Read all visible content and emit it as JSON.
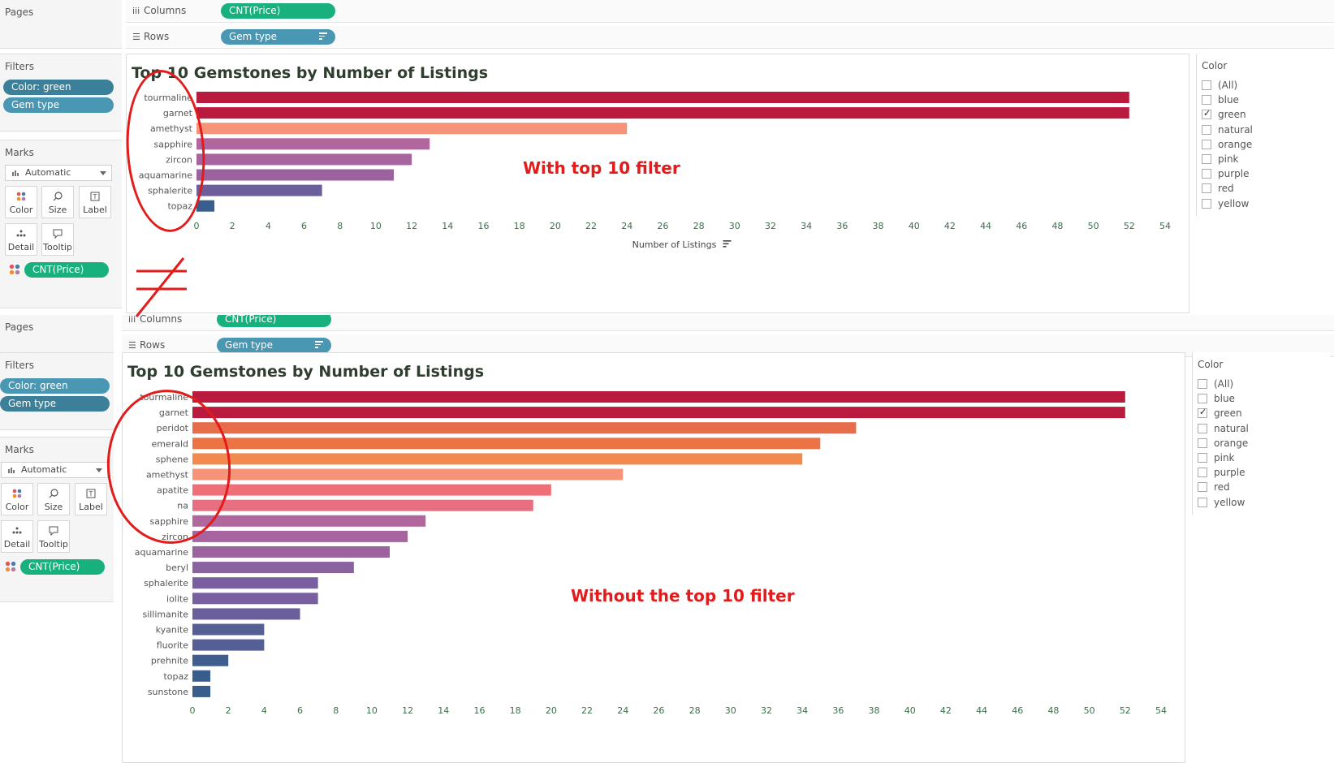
{
  "shelves": {
    "pages_label": "Pages",
    "columns_label": "Columns",
    "rows_label": "Rows",
    "columns_pill": "CNT(Price)",
    "rows_pill": "Gem type"
  },
  "filters": {
    "title": "Filters",
    "items": [
      "Color: green",
      "Gem type"
    ]
  },
  "marks": {
    "title": "Marks",
    "type": "Automatic",
    "buttons": [
      "Color",
      "Size",
      "Label",
      "Detail",
      "Tooltip"
    ],
    "color_field": "CNT(Price)"
  },
  "color_filter": {
    "title": "Color",
    "options": [
      {
        "label": "(All)",
        "checked": false
      },
      {
        "label": "blue",
        "checked": false
      },
      {
        "label": "green",
        "checked": true
      },
      {
        "label": "natural",
        "checked": false
      },
      {
        "label": "orange",
        "checked": false
      },
      {
        "label": "pink",
        "checked": false
      },
      {
        "label": "purple",
        "checked": false
      },
      {
        "label": "red",
        "checked": false
      },
      {
        "label": "yellow",
        "checked": false
      }
    ]
  },
  "annotations": {
    "top": "With top 10 filter",
    "bottom": "Without the top 10 filter"
  },
  "chart_data": [
    {
      "type": "bar",
      "orientation": "horizontal",
      "title": "Top 10 Gemstones by Number of Listings",
      "xlabel": "Number of Listings",
      "xlim": [
        0,
        54
      ],
      "xticks": [
        0,
        2,
        4,
        6,
        8,
        10,
        12,
        14,
        16,
        18,
        20,
        22,
        24,
        26,
        28,
        30,
        32,
        34,
        36,
        38,
        40,
        42,
        44,
        46,
        48,
        50,
        52,
        54
      ],
      "categories": [
        "tourmaline",
        "garnet",
        "amethyst",
        "sapphire",
        "zircon",
        "aquamarine",
        "sphalerite",
        "topaz"
      ],
      "values": [
        52,
        52,
        24,
        13,
        12,
        11,
        7,
        1
      ],
      "colors": [
        "#bb1a3f",
        "#bb1a3f",
        "#f69479",
        "#b1669e",
        "#a8649f",
        "#9c629f",
        "#6b5e9b",
        "#395d8c"
      ]
    },
    {
      "type": "bar",
      "orientation": "horizontal",
      "title": "Top 10 Gemstones by Number of Listings",
      "xlabel": "",
      "xlim": [
        0,
        54
      ],
      "xticks": [
        0,
        2,
        4,
        6,
        8,
        10,
        12,
        14,
        16,
        18,
        20,
        22,
        24,
        26,
        28,
        30,
        32,
        34,
        36,
        38,
        40,
        42,
        44,
        46,
        48,
        50,
        52,
        54
      ],
      "categories": [
        "tourmaline",
        "garnet",
        "peridot",
        "emerald",
        "sphene",
        "amethyst",
        "apatite",
        "na",
        "sapphire",
        "zircon",
        "aquamarine",
        "beryl",
        "sphalerite",
        "iolite",
        "sillimanite",
        "kyanite",
        "fluorite",
        "prehnite",
        "topaz",
        "sunstone"
      ],
      "values": [
        52,
        52,
        37,
        35,
        34,
        24,
        20,
        19,
        13,
        12,
        11,
        9,
        7,
        7,
        6,
        4,
        4,
        2,
        1,
        1
      ],
      "colors": [
        "#bb1a3f",
        "#bb1a3f",
        "#e76c4a",
        "#ec7346",
        "#f08a4e",
        "#f69479",
        "#ef6f79",
        "#e6707f",
        "#b1669e",
        "#a8649f",
        "#9c629f",
        "#8b62a0",
        "#7a5fa0",
        "#775fa0",
        "#6a5e9b",
        "#565f95",
        "#565f95",
        "#3f5d8f",
        "#395d8c",
        "#395d8c"
      ]
    }
  ]
}
